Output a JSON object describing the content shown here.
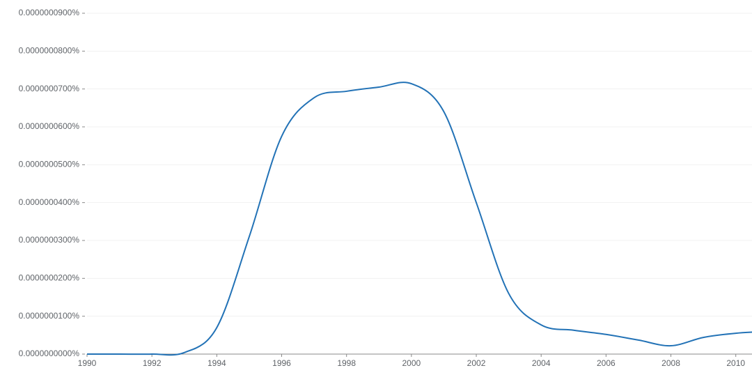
{
  "chart_data": {
    "type": "line",
    "x": [
      1990,
      1991,
      1992,
      1993,
      1994,
      1995,
      1996,
      1997,
      1998,
      1999,
      2000,
      2001,
      2002,
      2003,
      2004,
      2005,
      2006,
      2007,
      2008,
      2009,
      2010,
      2011
    ],
    "series": [
      {
        "color": "#2272b6",
        "values": [
          0,
          0,
          0,
          4e-10,
          7e-09,
          3.1e-08,
          5.75e-08,
          6.77e-08,
          6.94e-08,
          7.05e-08,
          7.14e-08,
          6.4e-08,
          4e-08,
          1.6e-08,
          7.7e-09,
          6.3e-09,
          5.2e-09,
          3.7e-09,
          2.2e-09,
          4.4e-09,
          5.5e-09,
          6e-09
        ]
      }
    ],
    "xlim": [
      1990,
      2010.5
    ],
    "xticks": [
      1990,
      1992,
      1994,
      1996,
      1998,
      2000,
      2002,
      2004,
      2006,
      2008,
      2010
    ],
    "ylim": [
      0,
      9e-08
    ],
    "yticks": [
      {
        "value": 0,
        "label": "0.0000000000%"
      },
      {
        "value": 1e-08,
        "label": "0.0000000100%"
      },
      {
        "value": 2e-08,
        "label": "0.0000000200%"
      },
      {
        "value": 3e-08,
        "label": "0.0000000300%"
      },
      {
        "value": 4e-08,
        "label": "0.0000000400%"
      },
      {
        "value": 5e-08,
        "label": "0.0000000500%"
      },
      {
        "value": 6e-08,
        "label": "0.0000000600%"
      },
      {
        "value": 7e-08,
        "label": "0.0000000700%"
      },
      {
        "value": 8e-08,
        "label": "0.0000000800%"
      },
      {
        "value": 9e-08,
        "label": "0.0000000900%"
      }
    ],
    "grid": true
  }
}
